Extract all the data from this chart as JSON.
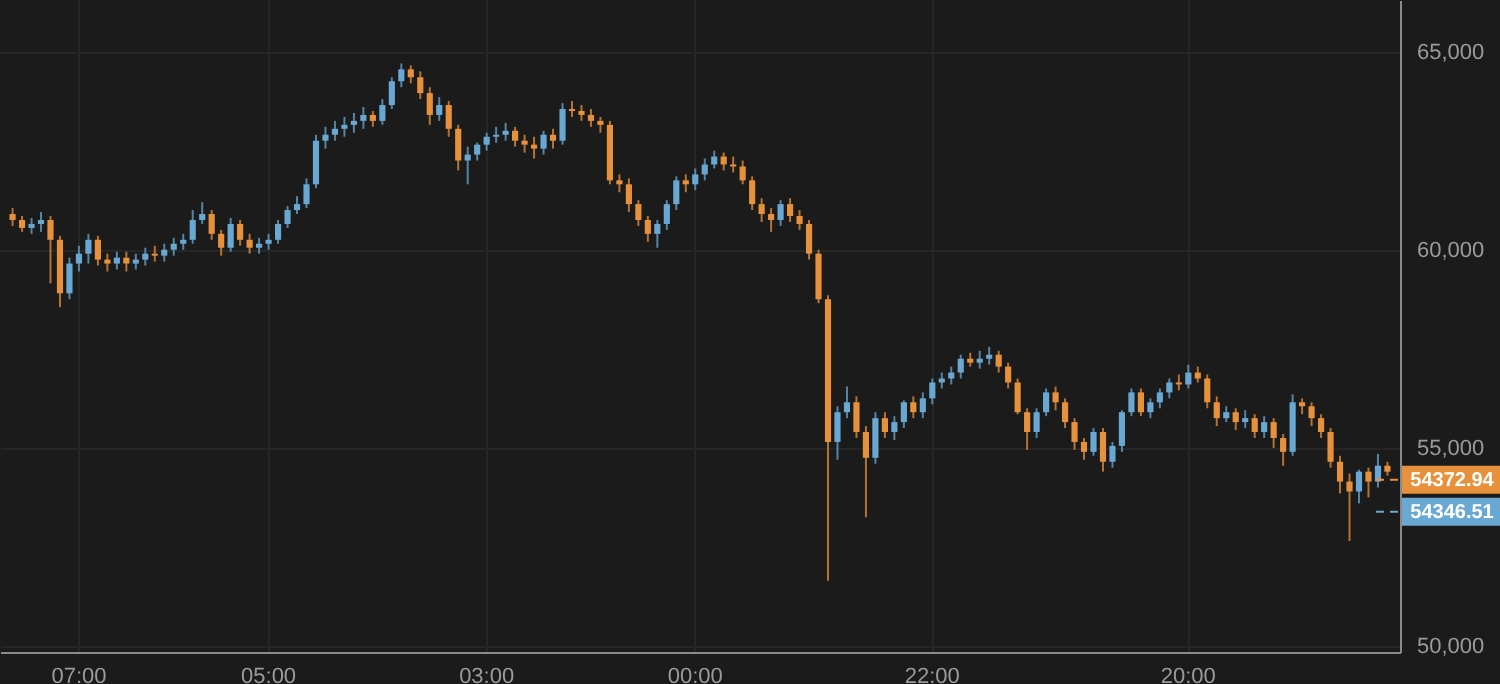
{
  "chart_data": {
    "type": "candlestick",
    "categories": [
      null,
      null,
      null,
      null,
      null,
      null,
      null,
      "07:00",
      null,
      null,
      null,
      null,
      null,
      null,
      null,
      null,
      null,
      null,
      null,
      null,
      null,
      null,
      null,
      null,
      null,
      null,
      null,
      "05:00",
      null,
      null,
      null,
      null,
      null,
      null,
      null,
      null,
      null,
      null,
      null,
      null,
      null,
      null,
      null,
      null,
      null,
      null,
      null,
      null,
      null,
      null,
      "03:00",
      null,
      null,
      null,
      null,
      null,
      null,
      null,
      null,
      null,
      null,
      null,
      null,
      null,
      null,
      null,
      null,
      null,
      null,
      null,
      null,
      null,
      "00:00",
      null,
      null,
      null,
      null,
      null,
      null,
      null,
      null,
      null,
      null,
      null,
      null,
      null,
      null,
      null,
      null,
      null,
      null,
      null,
      null,
      null,
      null,
      null,
      null,
      "22:00",
      null,
      null,
      null,
      null,
      null,
      null,
      null,
      null,
      null,
      null,
      null,
      null,
      null,
      null,
      null,
      null,
      null,
      null,
      null,
      null,
      null,
      null,
      null,
      null,
      null,
      null,
      "20:00",
      null,
      null,
      null,
      null,
      null,
      null,
      null,
      null,
      null,
      null,
      null,
      null,
      null,
      null,
      null,
      null,
      null,
      null,
      null,
      null,
      null
    ],
    "ohlc": [
      [
        60900,
        61050,
        60600,
        60750
      ],
      [
        60750,
        60850,
        60450,
        60550
      ],
      [
        60550,
        60800,
        60400,
        60650
      ],
      [
        60650,
        60950,
        60450,
        60750
      ],
      [
        60750,
        60850,
        59150,
        60250
      ],
      [
        60250,
        60350,
        58550,
        58900
      ],
      [
        58900,
        59800,
        58750,
        59650
      ],
      [
        59650,
        60100,
        59450,
        59900
      ],
      [
        59900,
        60400,
        59650,
        60250
      ],
      [
        60250,
        60350,
        59600,
        59750
      ],
      [
        59750,
        59900,
        59450,
        59650
      ],
      [
        59650,
        59950,
        59500,
        59800
      ],
      [
        59800,
        59950,
        59450,
        59650
      ],
      [
        59650,
        59900,
        59500,
        59750
      ],
      [
        59750,
        60050,
        59600,
        59900
      ],
      [
        59900,
        60100,
        59700,
        59850
      ],
      [
        59850,
        60150,
        59700,
        60000
      ],
      [
        60000,
        60300,
        59850,
        60150
      ],
      [
        60150,
        60400,
        60000,
        60250
      ],
      [
        60250,
        61000,
        60150,
        60750
      ],
      [
        60750,
        61200,
        60650,
        60900
      ],
      [
        60900,
        61000,
        60250,
        60400
      ],
      [
        60400,
        60500,
        59850,
        60050
      ],
      [
        60050,
        60800,
        59950,
        60650
      ],
      [
        60650,
        60750,
        60100,
        60250
      ],
      [
        60250,
        60400,
        59900,
        60050
      ],
      [
        60050,
        60300,
        59900,
        60150
      ],
      [
        60150,
        60400,
        60000,
        60250
      ],
      [
        60250,
        60750,
        60150,
        60650
      ],
      [
        60650,
        61100,
        60550,
        61000
      ],
      [
        61000,
        61350,
        60900,
        61150
      ],
      [
        61150,
        61800,
        61050,
        61650
      ],
      [
        61650,
        62900,
        61550,
        62750
      ],
      [
        62750,
        63100,
        62550,
        62900
      ],
      [
        62900,
        63250,
        62750,
        63050
      ],
      [
        63050,
        63350,
        62850,
        63150
      ],
      [
        63150,
        63450,
        62950,
        63250
      ],
      [
        63250,
        63600,
        63050,
        63400
      ],
      [
        63400,
        63500,
        63100,
        63250
      ],
      [
        63250,
        63800,
        63150,
        63650
      ],
      [
        63650,
        64350,
        63550,
        64250
      ],
      [
        64250,
        64700,
        64100,
        64550
      ],
      [
        64550,
        64650,
        64200,
        64350
      ],
      [
        64350,
        64500,
        63800,
        63950
      ],
      [
        63950,
        64100,
        63150,
        63400
      ],
      [
        63400,
        63850,
        63250,
        63650
      ],
      [
        63650,
        63750,
        62850,
        63050
      ],
      [
        63050,
        63150,
        62000,
        62250
      ],
      [
        62250,
        62600,
        61650,
        62400
      ],
      [
        62400,
        62700,
        62250,
        62650
      ],
      [
        62650,
        62950,
        62500,
        62850
      ],
      [
        62850,
        63100,
        62700,
        62900
      ],
      [
        62900,
        63200,
        62750,
        63000
      ],
      [
        63000,
        63100,
        62600,
        62750
      ],
      [
        62750,
        62900,
        62450,
        62650
      ],
      [
        62650,
        62850,
        62300,
        62550
      ],
      [
        62550,
        63000,
        62400,
        62900
      ],
      [
        62900,
        63050,
        62550,
        62750
      ],
      [
        62750,
        63700,
        62650,
        63550
      ],
      [
        63550,
        63750,
        63350,
        63500
      ],
      [
        63500,
        63650,
        63250,
        63400
      ],
      [
        63400,
        63550,
        63100,
        63250
      ],
      [
        63250,
        63350,
        62950,
        63150
      ],
      [
        63150,
        63250,
        61650,
        61750
      ],
      [
        61750,
        61900,
        61450,
        61650
      ],
      [
        61650,
        61800,
        60950,
        61150
      ],
      [
        61150,
        61250,
        60600,
        60750
      ],
      [
        60750,
        60850,
        60200,
        60400
      ],
      [
        60400,
        60750,
        60050,
        60650
      ],
      [
        60650,
        61250,
        60500,
        61150
      ],
      [
        61150,
        61850,
        61000,
        61750
      ],
      [
        61750,
        61900,
        61450,
        61650
      ],
      [
        61650,
        62050,
        61500,
        61900
      ],
      [
        61900,
        62300,
        61750,
        62150
      ],
      [
        62150,
        62500,
        62050,
        62350
      ],
      [
        62350,
        62450,
        62000,
        62150
      ],
      [
        62150,
        62350,
        61950,
        62100
      ],
      [
        62100,
        62250,
        61650,
        61750
      ],
      [
        61750,
        61850,
        61000,
        61150
      ],
      [
        61150,
        61300,
        60700,
        60900
      ],
      [
        60900,
        61050,
        60450,
        60750
      ],
      [
        60750,
        61250,
        60600,
        61150
      ],
      [
        61150,
        61300,
        60700,
        60850
      ],
      [
        60850,
        61000,
        60500,
        60650
      ],
      [
        60650,
        60750,
        59750,
        59900
      ],
      [
        59900,
        60000,
        58650,
        58750
      ],
      [
        58750,
        58850,
        51650,
        55150
      ],
      [
        55150,
        56050,
        54700,
        55900
      ],
      [
        55900,
        56550,
        55750,
        56150
      ],
      [
        56150,
        56300,
        55250,
        55400
      ],
      [
        55400,
        55550,
        53250,
        54750
      ],
      [
        54750,
        55900,
        54600,
        55750
      ],
      [
        55750,
        55900,
        55250,
        55400
      ],
      [
        55400,
        55800,
        55200,
        55650
      ],
      [
        55650,
        56200,
        55500,
        56150
      ],
      [
        56150,
        56300,
        55750,
        55900
      ],
      [
        55900,
        56400,
        55750,
        56250
      ],
      [
        56250,
        56750,
        56100,
        56650
      ],
      [
        56650,
        56900,
        56500,
        56750
      ],
      [
        56750,
        57050,
        56600,
        56900
      ],
      [
        56900,
        57350,
        56750,
        57250
      ],
      [
        57250,
        57400,
        57050,
        57150
      ],
      [
        57150,
        57450,
        57000,
        57250
      ],
      [
        57250,
        57550,
        57100,
        57350
      ],
      [
        57350,
        57450,
        56900,
        57050
      ],
      [
        57050,
        57150,
        56500,
        56650
      ],
      [
        56650,
        56750,
        55850,
        55900
      ],
      [
        55900,
        56000,
        54950,
        55400
      ],
      [
        55400,
        56000,
        55250,
        55900
      ],
      [
        55900,
        56500,
        55800,
        56400
      ],
      [
        56400,
        56550,
        55950,
        56150
      ],
      [
        56150,
        56250,
        55500,
        55650
      ],
      [
        55650,
        55750,
        54950,
        55150
      ],
      [
        55150,
        55250,
        54700,
        54900
      ],
      [
        54900,
        55500,
        54800,
        55400
      ],
      [
        55400,
        55500,
        54400,
        54650
      ],
      [
        54650,
        55150,
        54500,
        55050
      ],
      [
        55050,
        55950,
        54900,
        55900
      ],
      [
        55900,
        56500,
        55800,
        56400
      ],
      [
        56400,
        56500,
        55800,
        55900
      ],
      [
        55900,
        56250,
        55750,
        56150
      ],
      [
        56150,
        56500,
        56000,
        56400
      ],
      [
        56400,
        56750,
        56250,
        56650
      ],
      [
        56650,
        56850,
        56450,
        56600
      ],
      [
        56600,
        57100,
        56500,
        56900
      ],
      [
        56900,
        57050,
        56650,
        56750
      ],
      [
        56750,
        56850,
        56000,
        56150
      ],
      [
        56150,
        56300,
        55550,
        55750
      ],
      [
        55750,
        56050,
        55650,
        55900
      ],
      [
        55900,
        56000,
        55450,
        55650
      ],
      [
        55650,
        55950,
        55500,
        55750
      ],
      [
        55750,
        55850,
        55250,
        55400
      ],
      [
        55400,
        55800,
        55250,
        55650
      ],
      [
        55650,
        55750,
        55000,
        55250
      ],
      [
        55250,
        55350,
        54550,
        54900
      ],
      [
        54900,
        56350,
        54800,
        56150
      ],
      [
        56150,
        56250,
        55850,
        56050
      ],
      [
        56050,
        56150,
        55550,
        55750
      ],
      [
        55750,
        55850,
        55250,
        55400
      ],
      [
        55400,
        55500,
        54500,
        54650
      ],
      [
        54650,
        54800,
        53850,
        54150
      ],
      [
        54150,
        54350,
        52650,
        53900
      ],
      [
        53900,
        54450,
        53600,
        54400
      ],
      [
        54400,
        54500,
        53750,
        54150
      ],
      [
        54150,
        54850,
        54000,
        54550
      ],
      [
        54550,
        54650,
        54300,
        54400
      ]
    ],
    "colors": [
      "#e8913c",
      "#e8913c",
      "#6aa8d4",
      "#6aa8d4",
      "#e8913c",
      "#e8913c",
      "#6aa8d4",
      "#6aa8d4",
      "#6aa8d4",
      "#e8913c",
      "#e8913c",
      "#6aa8d4",
      "#e8913c",
      "#6aa8d4",
      "#6aa8d4",
      "#e8913c",
      "#6aa8d4",
      "#6aa8d4",
      "#6aa8d4",
      "#6aa8d4",
      "#6aa8d4",
      "#e8913c",
      "#e8913c",
      "#6aa8d4",
      "#e8913c",
      "#e8913c",
      "#6aa8d4",
      "#6aa8d4",
      "#6aa8d4",
      "#6aa8d4",
      "#6aa8d4",
      "#6aa8d4",
      "#6aa8d4",
      "#6aa8d4",
      "#6aa8d4",
      "#6aa8d4",
      "#6aa8d4",
      "#6aa8d4",
      "#e8913c",
      "#6aa8d4",
      "#6aa8d4",
      "#6aa8d4",
      "#e8913c",
      "#e8913c",
      "#e8913c",
      "#6aa8d4",
      "#e8913c",
      "#e8913c",
      "#6aa8d4",
      "#6aa8d4",
      "#6aa8d4",
      "#6aa8d4",
      "#6aa8d4",
      "#e8913c",
      "#e8913c",
      "#e8913c",
      "#6aa8d4",
      "#e8913c",
      "#6aa8d4",
      "#e8913c",
      "#e8913c",
      "#e8913c",
      "#e8913c",
      "#e8913c",
      "#e8913c",
      "#e8913c",
      "#e8913c",
      "#e8913c",
      "#6aa8d4",
      "#6aa8d4",
      "#6aa8d4",
      "#e8913c",
      "#6aa8d4",
      "#6aa8d4",
      "#6aa8d4",
      "#e8913c",
      "#e8913c",
      "#e8913c",
      "#e8913c",
      "#e8913c",
      "#e8913c",
      "#6aa8d4",
      "#e8913c",
      "#e8913c",
      "#e8913c",
      "#e8913c",
      "#e8913c",
      "#6aa8d4",
      "#6aa8d4",
      "#e8913c",
      "#e8913c",
      "#6aa8d4",
      "#e8913c",
      "#6aa8d4",
      "#6aa8d4",
      "#e8913c",
      "#6aa8d4",
      "#6aa8d4",
      "#6aa8d4",
      "#6aa8d4",
      "#6aa8d4",
      "#e8913c",
      "#6aa8d4",
      "#6aa8d4",
      "#e8913c",
      "#e8913c",
      "#e8913c",
      "#e8913c",
      "#6aa8d4",
      "#6aa8d4",
      "#e8913c",
      "#e8913c",
      "#e8913c",
      "#e8913c",
      "#6aa8d4",
      "#e8913c",
      "#6aa8d4",
      "#6aa8d4",
      "#6aa8d4",
      "#e8913c",
      "#6aa8d4",
      "#6aa8d4",
      "#6aa8d4",
      "#e8913c",
      "#6aa8d4",
      "#e8913c",
      "#e8913c",
      "#e8913c",
      "#6aa8d4",
      "#e8913c",
      "#6aa8d4",
      "#e8913c",
      "#6aa8d4",
      "#e8913c",
      "#e8913c",
      "#6aa8d4",
      "#e8913c",
      "#e8913c",
      "#e8913c",
      "#e8913c",
      "#e8913c",
      "#e8913c",
      "#6aa8d4",
      "#e8913c",
      "#6aa8d4",
      "#e8913c"
    ],
    "ylim": [
      49850,
      66300
    ],
    "yticks": [
      {
        "value": 50000,
        "label": "50,000"
      },
      {
        "value": 55000,
        "label": "55,000"
      },
      {
        "value": 60000,
        "label": "60,000"
      },
      {
        "value": 65000,
        "label": "65,000"
      }
    ],
    "annotations": [
      "54372.94",
      "54346.51"
    ],
    "grid": true
  }
}
